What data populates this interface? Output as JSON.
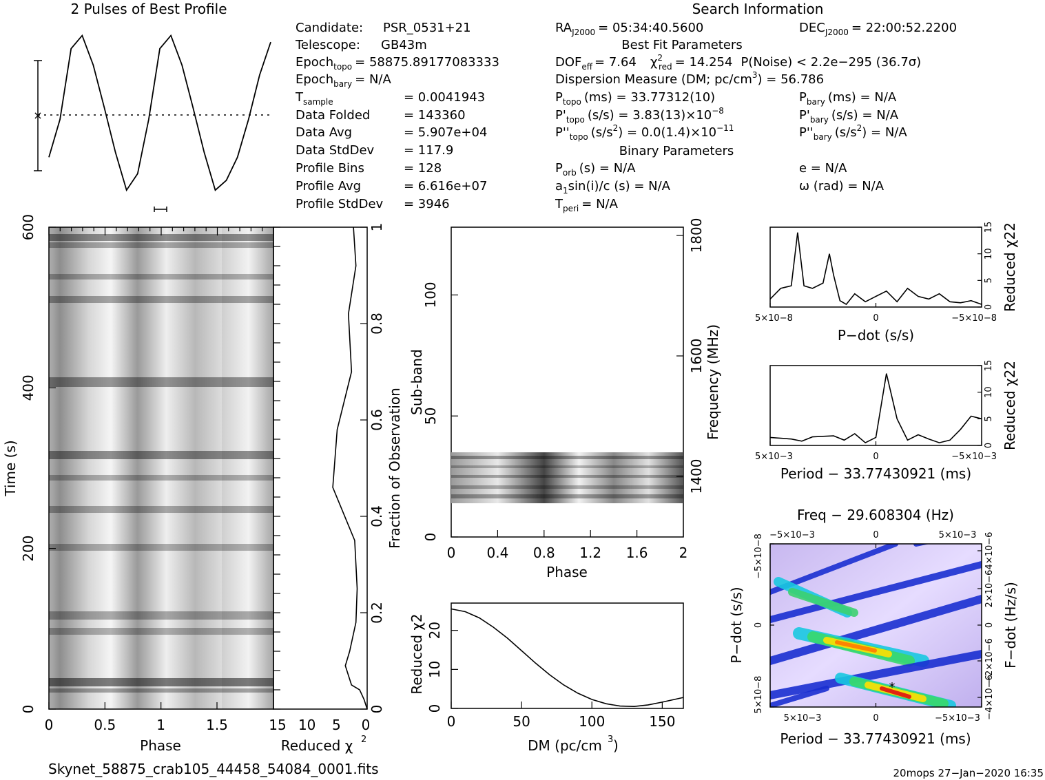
{
  "header": {
    "profile_title": "2 Pulses of Best Profile",
    "search_title": "Search Information",
    "best_fit_title": "Best Fit Parameters",
    "binary_title": "Binary Parameters"
  },
  "info_left": [
    {
      "label": "Candidate:",
      "value": "PSR_0531+21"
    },
    {
      "label": "Telescope:",
      "value": "GB43m"
    },
    {
      "label": "Epoch",
      "sub": "topo",
      "value": "= 58875.89177083333"
    },
    {
      "label": "Epoch",
      "sub": "bary",
      "value": "= N/A"
    },
    {
      "label": "T",
      "sub": "sample",
      "value": "=   0.0041943"
    },
    {
      "label": "Data Folded",
      "value": "=   143360"
    },
    {
      "label": "Data Avg",
      "value": "=   5.907e+04"
    },
    {
      "label": "Data StdDev",
      "value": "=   117.9"
    },
    {
      "label": "Profile Bins",
      "value": "=   128"
    },
    {
      "label": "Profile Avg",
      "value": "=   6.616e+07"
    },
    {
      "label": "Profile StdDev",
      "value": "=   3946"
    }
  ],
  "info_right": {
    "ra": {
      "label": "RA",
      "sub": "J2000",
      "value": "= 05:34:40.5600"
    },
    "dec": {
      "label": "DEC",
      "sub": "J2000",
      "value": "= 22:00:52.2200"
    },
    "dof": "DOF",
    "dof_sub": "eff",
    "dof_val": "= 7.64",
    "chi": "χ",
    "chi_sup": "2",
    "chi_sub": "red",
    "chi_val": "= 14.254",
    "pnoise": "P(Noise) < 2.2e−295   (36.7σ)",
    "dm": "Dispersion Measure (DM; pc/cm",
    "dm_sup": "3",
    "dm_val": ") = 56.786",
    "ptopo": "(ms) =  33.77312(10)",
    "pbary": "(ms) = N/A",
    "pdtopo": "(s/s) =  3.83(13)×10",
    "pdtopo_exp": "−8",
    "pdbary": "(s/s) = N/A",
    "pddtopo": "(s/s",
    "pddtopo_val": ") = 0.0(1.4)×10",
    "pddtopo_exp": "−11",
    "pddbary": "(s/s",
    "pddbary_val": ") = N/A",
    "porb": "(s) = N/A",
    "e": "e = N/A",
    "a1": "a",
    "a1_val": "sin(i)/c (s) = N/A",
    "omega": "ω (rad) = N/A",
    "tperi": "= N/A"
  },
  "footer": {
    "filename": "Skynet_58875_crab105_44458_54084_0001.fits",
    "stamp": "20mops 27−Jan−2020 16:35"
  },
  "colors": {
    "line": "#000000",
    "background": "#ffffff"
  },
  "chart_data": [
    {
      "type": "line",
      "title": "2 Pulses of Best Profile",
      "x": [
        0.0,
        0.1,
        0.2,
        0.3,
        0.4,
        0.5,
        0.6,
        0.7,
        0.8,
        0.9,
        1.0,
        1.1,
        1.2,
        1.3,
        1.4,
        1.5,
        1.6,
        1.7,
        1.8,
        1.9,
        2.0
      ],
      "values": [
        0.22,
        0.45,
        0.88,
        0.96,
        0.78,
        0.52,
        0.25,
        0.02,
        0.12,
        0.45,
        0.88,
        0.96,
        0.78,
        0.52,
        0.25,
        0.02,
        0.08,
        0.22,
        0.45,
        0.72,
        0.92
      ]
    },
    {
      "type": "heatmap",
      "xlabel": "Phase",
      "ylabel": "Time (s)",
      "x_ticks": [
        "0",
        "0.5",
        "1",
        "1.5"
      ],
      "y_ticks": [
        "0",
        "200",
        "400",
        "600"
      ],
      "xlim": [
        0,
        2
      ],
      "ylim": [
        0,
        600
      ]
    },
    {
      "type": "line",
      "xlabel": "Reduced χ2",
      "ylabel": "Fraction of Observation",
      "x_ticks": [
        "15",
        "10",
        "5",
        "0"
      ],
      "y_ticks": [
        "0",
        "0.2",
        "0.4",
        "0.6",
        "0.8",
        "1"
      ],
      "xlim": [
        15,
        0
      ],
      "ylim": [
        0,
        1
      ],
      "x": [
        0.0,
        0.5,
        1.2,
        2.5,
        3.5,
        2.8,
        1.8,
        1.6,
        2.0,
        5.5,
        4.8,
        2.5,
        3.0,
        1.8,
        2.2
      ],
      "y": [
        0.0,
        0.02,
        0.04,
        0.05,
        0.09,
        0.12,
        0.18,
        0.25,
        0.35,
        0.46,
        0.58,
        0.7,
        0.82,
        0.92,
        1.0
      ]
    },
    {
      "type": "heatmap",
      "xlabel": "Phase",
      "ylabel": "Sub-band",
      "y2label": "Frequency (MHz)",
      "x_ticks": [
        "0",
        "0.4",
        "0.8",
        "1.2",
        "1.6",
        "2"
      ],
      "y_ticks": [
        "0",
        "50",
        "100"
      ],
      "y2_ticks": [
        "1400",
        "1600",
        "1800"
      ],
      "xlim": [
        0,
        2
      ],
      "ylim": [
        0,
        128
      ]
    },
    {
      "type": "line",
      "xlabel": "DM (pc/cm3)",
      "ylabel": "Reduced χ2",
      "x_ticks": [
        "0",
        "50",
        "100",
        "150"
      ],
      "y_ticks": [
        "0",
        "10",
        "20"
      ],
      "xlim": [
        0,
        165
      ],
      "ylim": [
        0,
        27
      ],
      "x": [
        0,
        10,
        20,
        30,
        40,
        50,
        60,
        70,
        80,
        90,
        100,
        110,
        120,
        130,
        140,
        150,
        165
      ],
      "y": [
        25.5,
        24.8,
        23.2,
        20.8,
        18.0,
        14.8,
        11.6,
        8.6,
        6.0,
        3.9,
        2.3,
        1.2,
        0.6,
        0.5,
        0.9,
        1.6,
        2.8
      ]
    },
    {
      "type": "line",
      "xlabel": "P−dot (s/s)",
      "ylabel": "Reduced χ2",
      "x_ticks": [
        "5×10−8",
        "0",
        "−5×10−8"
      ],
      "y_ticks": [
        "0",
        "5",
        "10",
        "15"
      ],
      "ylim": [
        0,
        15
      ],
      "x": [
        0.0,
        0.05,
        0.1,
        0.13,
        0.16,
        0.2,
        0.25,
        0.28,
        0.3,
        0.33,
        0.36,
        0.4,
        0.45,
        0.5,
        0.55,
        0.6,
        0.65,
        0.7,
        0.75,
        0.8,
        0.85,
        0.9,
        0.95,
        1.0
      ],
      "y": [
        1.5,
        3.5,
        4.0,
        14.0,
        4.0,
        3.5,
        4.5,
        10.0,
        6.0,
        1.2,
        0.5,
        2.5,
        1.0,
        2.0,
        3.0,
        1.0,
        3.5,
        2.0,
        1.5,
        2.5,
        1.0,
        0.8,
        1.2,
        0.5
      ]
    },
    {
      "type": "line",
      "xlabel": "Period − 33.77430921 (ms)",
      "ylabel": "Reduced χ2",
      "x_ticks": [
        "5×10−3",
        "0",
        "−5×10−3"
      ],
      "y_ticks": [
        "0",
        "5",
        "10",
        "15"
      ],
      "ylim": [
        0,
        15
      ],
      "x": [
        0.0,
        0.1,
        0.15,
        0.2,
        0.3,
        0.35,
        0.4,
        0.45,
        0.5,
        0.55,
        0.6,
        0.65,
        0.7,
        0.75,
        0.8,
        0.85,
        0.9,
        0.95,
        1.0
      ],
      "y": [
        1.5,
        1.2,
        0.8,
        1.6,
        1.8,
        1.0,
        2.2,
        0.5,
        1.5,
        13.5,
        5.0,
        1.0,
        2.0,
        1.2,
        0.5,
        1.0,
        3.0,
        5.5,
        5.0
      ]
    },
    {
      "type": "heatmap",
      "title": "Freq − 29.608304 (Hz)",
      "xlabel": "Period − 33.77430921 (ms)",
      "ylabel": "P−dot (s/s)",
      "y2label": "F−dot (Hz/s)",
      "x_ticks": [
        "5×10−3",
        "0",
        "−5×10−3"
      ],
      "x2_ticks": [
        "−5×10−3",
        "0",
        "5×10−3"
      ],
      "y_ticks": [
        "5×10−8",
        "0",
        "−5×10−8"
      ],
      "y2_ticks": [
        "−4×10−6",
        "−2×10−6",
        "0",
        "2×10−6",
        "4×10−6"
      ]
    }
  ]
}
